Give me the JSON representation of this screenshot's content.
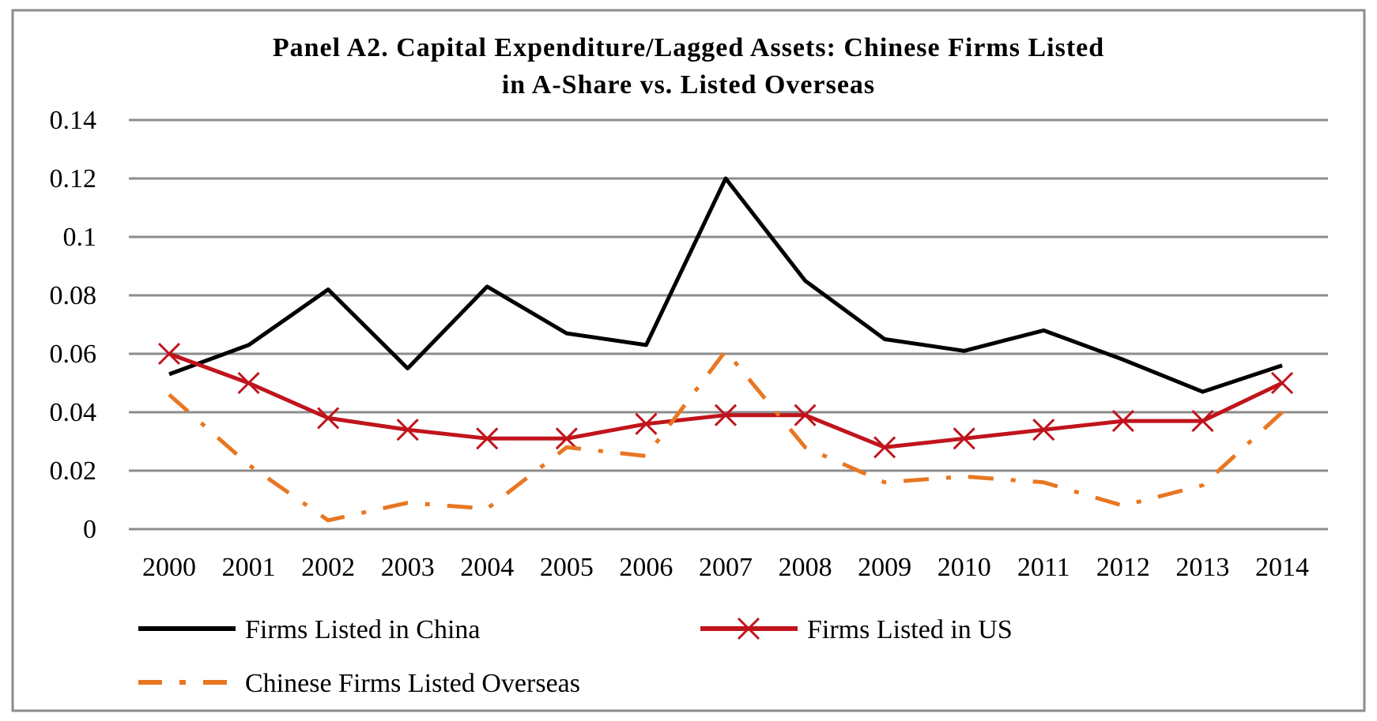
{
  "chart_data": {
    "type": "line",
    "title": "Panel A2.  Capital Expenditure/Lagged Assets:  Chinese Firms Listed",
    "subtitle": "in A-Share  vs. Listed Overseas",
    "xlabel": "",
    "ylabel": "",
    "categories": [
      "2000",
      "2001",
      "2002",
      "2003",
      "2004",
      "2005",
      "2006",
      "2007",
      "2008",
      "2009",
      "2010",
      "2011",
      "2012",
      "2013",
      "2014"
    ],
    "yticks": [
      "0",
      "0.02",
      "0.04",
      "0.06",
      "0.08",
      "0.1",
      "0.12",
      "0.14"
    ],
    "ylim": [
      0,
      0.14
    ],
    "grid": true,
    "legend_placement": "bottom",
    "series": [
      {
        "name": "Firms Listed in China",
        "color": "#000000",
        "style": "solid",
        "marker": "none",
        "values": [
          0.053,
          0.063,
          0.082,
          0.055,
          0.083,
          0.067,
          0.063,
          0.12,
          0.085,
          0.065,
          0.061,
          0.068,
          0.058,
          0.047,
          0.056
        ]
      },
      {
        "name": "Firms Listed in US",
        "color": "#c0141c",
        "style": "solid",
        "marker": "x",
        "values": [
          0.06,
          0.05,
          0.038,
          0.034,
          0.031,
          0.031,
          0.036,
          0.039,
          0.039,
          0.028,
          0.031,
          0.034,
          0.037,
          0.037,
          0.05
        ]
      },
      {
        "name": "Chinese Firms  Listed Overseas",
        "color": "#e87722",
        "style": "dashdot",
        "marker": "none",
        "values": [
          0.046,
          0.022,
          0.003,
          0.009,
          0.007,
          0.028,
          0.025,
          0.061,
          0.028,
          0.016,
          0.018,
          0.016,
          0.008,
          0.015,
          0.04
        ]
      }
    ]
  }
}
